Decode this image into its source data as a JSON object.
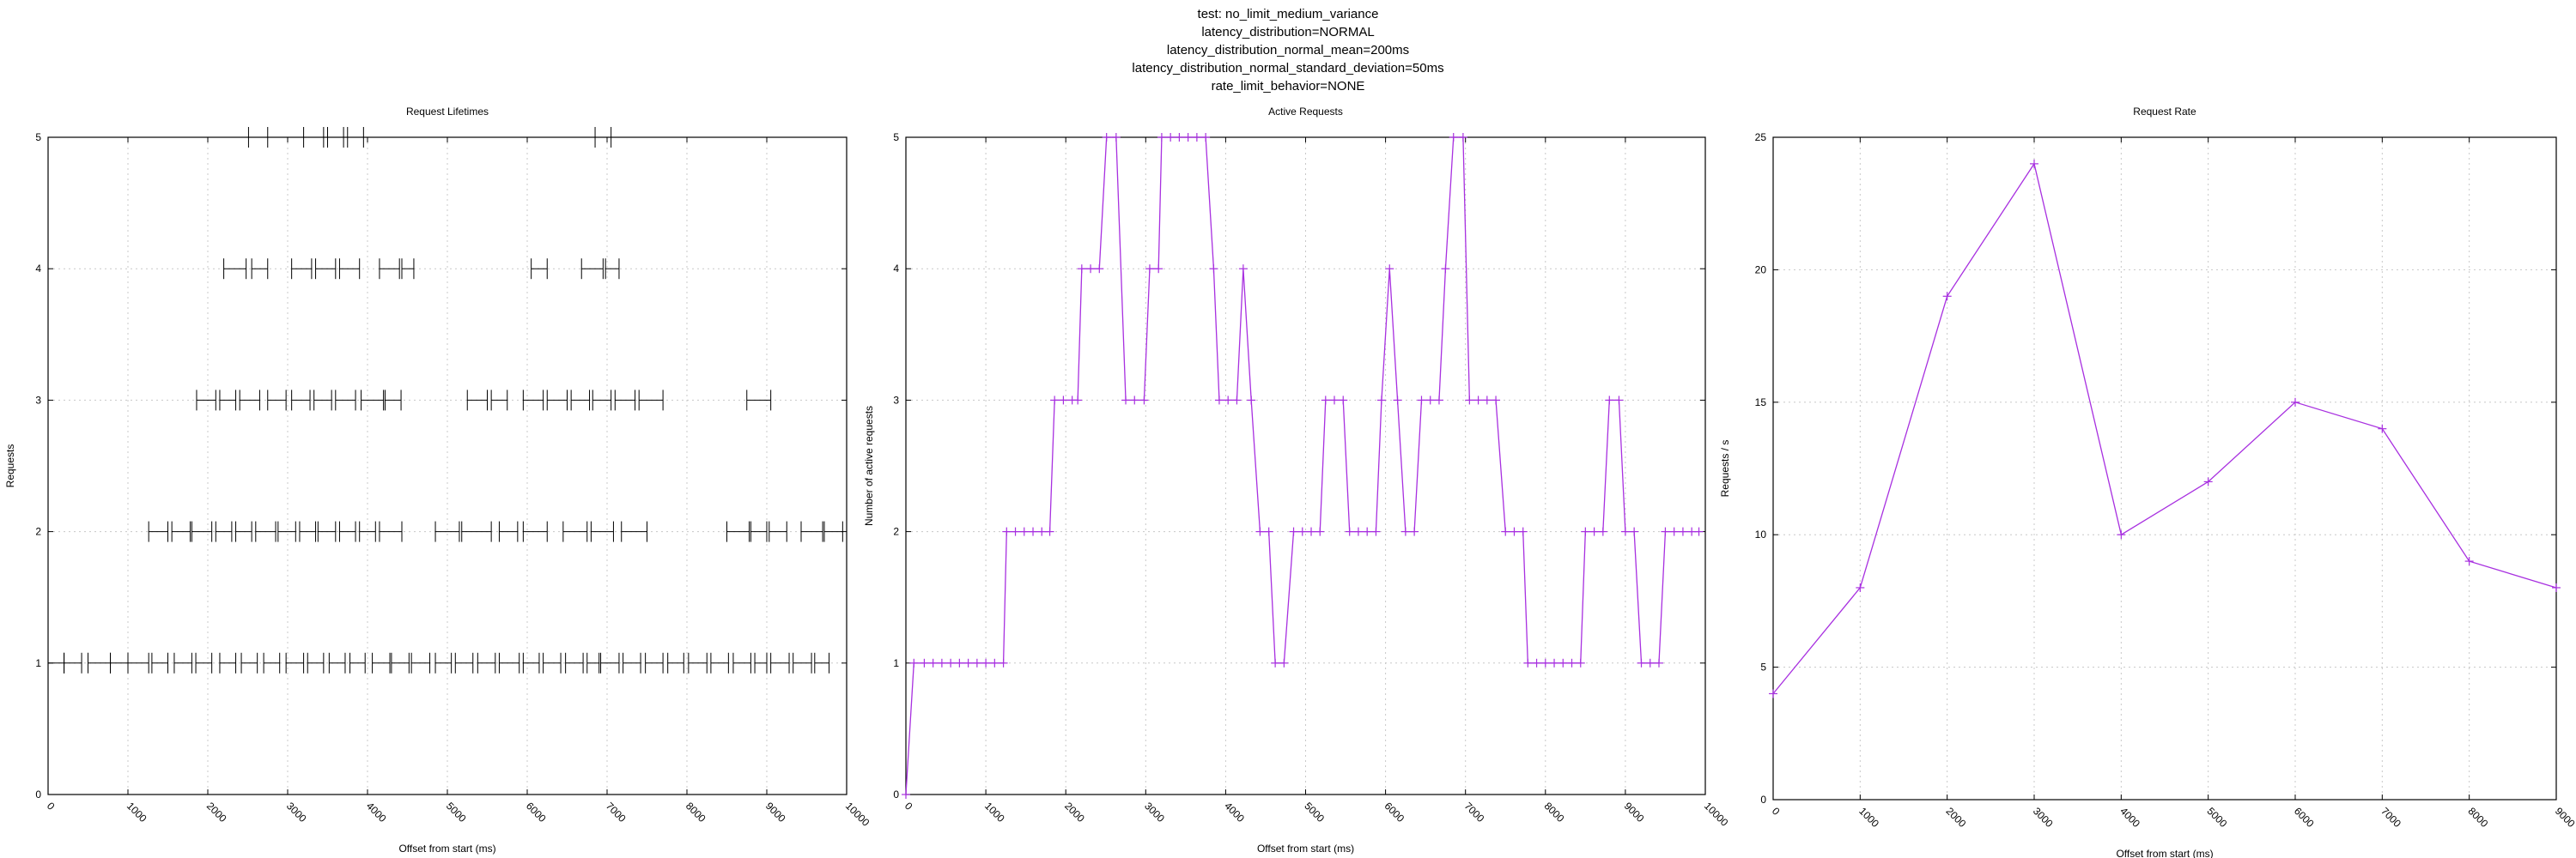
{
  "suptitle": [
    "test: no_limit_medium_variance",
    "latency_distribution=NORMAL",
    "latency_distribution_normal_mean=200ms",
    "latency_distribution_normal_standard_deviation=50ms",
    "rate_limit_behavior=NONE"
  ],
  "colors": {
    "line": "#a830e0",
    "lifetime": "#000000",
    "grid": "#c8c8c8"
  },
  "chart_data": [
    {
      "type": "errorbar",
      "title": "Request Lifetimes",
      "xlabel": "Offset from start (ms)",
      "ylabel": "Requests",
      "xlim": [
        0,
        10000
      ],
      "ylim": [
        0,
        5
      ],
      "xticks": [
        0,
        1000,
        2000,
        3000,
        4000,
        5000,
        6000,
        7000,
        8000,
        9000,
        10000
      ],
      "yticks": [
        0,
        1,
        2,
        3,
        4,
        5
      ],
      "grid": true,
      "intervals": [
        {
          "y": 1,
          "s": 0,
          "e": 200
        },
        {
          "y": 1,
          "s": 200,
          "e": 420
        },
        {
          "y": 1,
          "s": 500,
          "e": 780
        },
        {
          "y": 1,
          "s": 780,
          "e": 1000
        },
        {
          "y": 1,
          "s": 1000,
          "e": 1260
        },
        {
          "y": 1,
          "s": 1300,
          "e": 1500
        },
        {
          "y": 1,
          "s": 1580,
          "e": 1800
        },
        {
          "y": 1,
          "s": 1850,
          "e": 2050
        },
        {
          "y": 1,
          "s": 2150,
          "e": 2350
        },
        {
          "y": 1,
          "s": 2420,
          "e": 2620
        },
        {
          "y": 1,
          "s": 2700,
          "e": 2900
        },
        {
          "y": 1,
          "s": 2980,
          "e": 3200
        },
        {
          "y": 1,
          "s": 3250,
          "e": 3450
        },
        {
          "y": 1,
          "s": 3520,
          "e": 3720
        },
        {
          "y": 1,
          "s": 3780,
          "e": 3970
        },
        {
          "y": 1,
          "s": 4060,
          "e": 4280
        },
        {
          "y": 1,
          "s": 4300,
          "e": 4520
        },
        {
          "y": 1,
          "s": 4550,
          "e": 4780
        },
        {
          "y": 1,
          "s": 4850,
          "e": 5050
        },
        {
          "y": 1,
          "s": 5100,
          "e": 5320
        },
        {
          "y": 1,
          "s": 5380,
          "e": 5600
        },
        {
          "y": 1,
          "s": 5650,
          "e": 5900
        },
        {
          "y": 1,
          "s": 5950,
          "e": 6150
        },
        {
          "y": 1,
          "s": 6200,
          "e": 6420
        },
        {
          "y": 1,
          "s": 6480,
          "e": 6700
        },
        {
          "y": 1,
          "s": 6750,
          "e": 6900
        },
        {
          "y": 1,
          "s": 6920,
          "e": 7150
        },
        {
          "y": 1,
          "s": 7200,
          "e": 7420
        },
        {
          "y": 1,
          "s": 7480,
          "e": 7700
        },
        {
          "y": 1,
          "s": 7760,
          "e": 7960
        },
        {
          "y": 1,
          "s": 8020,
          "e": 8250
        },
        {
          "y": 1,
          "s": 8300,
          "e": 8520
        },
        {
          "y": 1,
          "s": 8580,
          "e": 8800
        },
        {
          "y": 1,
          "s": 8850,
          "e": 9000
        },
        {
          "y": 1,
          "s": 9050,
          "e": 9280
        },
        {
          "y": 1,
          "s": 9330,
          "e": 9560
        },
        {
          "y": 1,
          "s": 9600,
          "e": 9780
        },
        {
          "y": 2,
          "s": 1260,
          "e": 1500
        },
        {
          "y": 2,
          "s": 1550,
          "e": 1780
        },
        {
          "y": 2,
          "s": 1800,
          "e": 2050
        },
        {
          "y": 2,
          "s": 2100,
          "e": 2300
        },
        {
          "y": 2,
          "s": 2350,
          "e": 2550
        },
        {
          "y": 2,
          "s": 2600,
          "e": 2850
        },
        {
          "y": 2,
          "s": 2880,
          "e": 3100
        },
        {
          "y": 2,
          "s": 3150,
          "e": 3350
        },
        {
          "y": 2,
          "s": 3380,
          "e": 3600
        },
        {
          "y": 2,
          "s": 3650,
          "e": 3850
        },
        {
          "y": 2,
          "s": 3900,
          "e": 4100
        },
        {
          "y": 2,
          "s": 4150,
          "e": 4430
        },
        {
          "y": 2,
          "s": 4850,
          "e": 5150
        },
        {
          "y": 2,
          "s": 5180,
          "e": 5550
        },
        {
          "y": 2,
          "s": 5650,
          "e": 5880
        },
        {
          "y": 2,
          "s": 5950,
          "e": 6250
        },
        {
          "y": 2,
          "s": 6450,
          "e": 6750
        },
        {
          "y": 2,
          "s": 6800,
          "e": 7080
        },
        {
          "y": 2,
          "s": 7180,
          "e": 7500
        },
        {
          "y": 2,
          "s": 8500,
          "e": 8780
        },
        {
          "y": 2,
          "s": 8800,
          "e": 9000
        },
        {
          "y": 2,
          "s": 9030,
          "e": 9250
        },
        {
          "y": 2,
          "s": 9430,
          "e": 9700
        },
        {
          "y": 2,
          "s": 9720,
          "e": 9950
        },
        {
          "y": 3,
          "s": 1860,
          "e": 2100
        },
        {
          "y": 3,
          "s": 2150,
          "e": 2350
        },
        {
          "y": 3,
          "s": 2400,
          "e": 2650
        },
        {
          "y": 3,
          "s": 2750,
          "e": 2980
        },
        {
          "y": 3,
          "s": 3050,
          "e": 3280
        },
        {
          "y": 3,
          "s": 3330,
          "e": 3550
        },
        {
          "y": 3,
          "s": 3600,
          "e": 3850
        },
        {
          "y": 3,
          "s": 3920,
          "e": 4200
        },
        {
          "y": 3,
          "s": 4220,
          "e": 4420
        },
        {
          "y": 3,
          "s": 5250,
          "e": 5500
        },
        {
          "y": 3,
          "s": 5550,
          "e": 5750
        },
        {
          "y": 3,
          "s": 5950,
          "e": 6200
        },
        {
          "y": 3,
          "s": 6250,
          "e": 6500
        },
        {
          "y": 3,
          "s": 6550,
          "e": 6780
        },
        {
          "y": 3,
          "s": 6820,
          "e": 7050
        },
        {
          "y": 3,
          "s": 7100,
          "e": 7350
        },
        {
          "y": 3,
          "s": 7400,
          "e": 7700
        },
        {
          "y": 3,
          "s": 8750,
          "e": 9050
        },
        {
          "y": 4,
          "s": 2200,
          "e": 2480
        },
        {
          "y": 4,
          "s": 2550,
          "e": 2750
        },
        {
          "y": 4,
          "s": 3050,
          "e": 3300
        },
        {
          "y": 4,
          "s": 3350,
          "e": 3600
        },
        {
          "y": 4,
          "s": 3650,
          "e": 3900
        },
        {
          "y": 4,
          "s": 4150,
          "e": 4400
        },
        {
          "y": 4,
          "s": 4430,
          "e": 4580
        },
        {
          "y": 4,
          "s": 6050,
          "e": 6250
        },
        {
          "y": 4,
          "s": 6680,
          "e": 6950
        },
        {
          "y": 4,
          "s": 6980,
          "e": 7150
        },
        {
          "y": 5,
          "s": 2510,
          "e": 2750
        },
        {
          "y": 5,
          "s": 3200,
          "e": 3450
        },
        {
          "y": 5,
          "s": 3500,
          "e": 3700
        },
        {
          "y": 5,
          "s": 3750,
          "e": 3950
        },
        {
          "y": 5,
          "s": 6850,
          "e": 7050
        }
      ]
    },
    {
      "type": "line",
      "title": "Active Requests",
      "xlabel": "Offset from start (ms)",
      "ylabel": "Number of active requests",
      "xlim": [
        0,
        10000
      ],
      "ylim": [
        0,
        5
      ],
      "xticks": [
        0,
        1000,
        2000,
        3000,
        4000,
        5000,
        6000,
        7000,
        8000,
        9000,
        10000
      ],
      "yticks": [
        0,
        1,
        2,
        3,
        4,
        5
      ],
      "grid": true,
      "points": [
        [
          0,
          0
        ],
        [
          100,
          1
        ],
        [
          230,
          1
        ],
        [
          340,
          1
        ],
        [
          450,
          1
        ],
        [
          560,
          1
        ],
        [
          670,
          1
        ],
        [
          780,
          1
        ],
        [
          890,
          1
        ],
        [
          1000,
          1
        ],
        [
          1110,
          1
        ],
        [
          1220,
          1
        ],
        [
          1260,
          2
        ],
        [
          1370,
          2
        ],
        [
          1480,
          2
        ],
        [
          1590,
          2
        ],
        [
          1700,
          2
        ],
        [
          1800,
          2
        ],
        [
          1860,
          3
        ],
        [
          1970,
          3
        ],
        [
          2080,
          3
        ],
        [
          2150,
          3
        ],
        [
          2200,
          4
        ],
        [
          2310,
          4
        ],
        [
          2420,
          4
        ],
        [
          2510,
          5
        ],
        [
          2630,
          5
        ],
        [
          2750,
          3
        ],
        [
          2860,
          3
        ],
        [
          2980,
          3
        ],
        [
          3050,
          4
        ],
        [
          3160,
          4
        ],
        [
          3200,
          5
        ],
        [
          3310,
          5
        ],
        [
          3420,
          5
        ],
        [
          3530,
          5
        ],
        [
          3640,
          5
        ],
        [
          3750,
          5
        ],
        [
          3850,
          4
        ],
        [
          3920,
          3
        ],
        [
          4030,
          3
        ],
        [
          4140,
          3
        ],
        [
          4220,
          4
        ],
        [
          4320,
          3
        ],
        [
          4430,
          2
        ],
        [
          4540,
          2
        ],
        [
          4620,
          1
        ],
        [
          4730,
          1
        ],
        [
          4850,
          2
        ],
        [
          4960,
          2
        ],
        [
          5070,
          2
        ],
        [
          5180,
          2
        ],
        [
          5250,
          3
        ],
        [
          5360,
          3
        ],
        [
          5470,
          3
        ],
        [
          5550,
          2
        ],
        [
          5660,
          2
        ],
        [
          5770,
          2
        ],
        [
          5880,
          2
        ],
        [
          5950,
          3
        ],
        [
          6050,
          4
        ],
        [
          6150,
          3
        ],
        [
          6250,
          2
        ],
        [
          6360,
          2
        ],
        [
          6450,
          3
        ],
        [
          6560,
          3
        ],
        [
          6670,
          3
        ],
        [
          6750,
          4
        ],
        [
          6850,
          5
        ],
        [
          6970,
          5
        ],
        [
          7050,
          3
        ],
        [
          7160,
          3
        ],
        [
          7270,
          3
        ],
        [
          7380,
          3
        ],
        [
          7500,
          2
        ],
        [
          7610,
          2
        ],
        [
          7720,
          2
        ],
        [
          7780,
          1
        ],
        [
          7890,
          1
        ],
        [
          8000,
          1
        ],
        [
          8110,
          1
        ],
        [
          8220,
          1
        ],
        [
          8330,
          1
        ],
        [
          8440,
          1
        ],
        [
          8500,
          2
        ],
        [
          8610,
          2
        ],
        [
          8720,
          2
        ],
        [
          8800,
          3
        ],
        [
          8920,
          3
        ],
        [
          9000,
          2
        ],
        [
          9110,
          2
        ],
        [
          9200,
          1
        ],
        [
          9310,
          1
        ],
        [
          9420,
          1
        ],
        [
          9500,
          2
        ],
        [
          9610,
          2
        ],
        [
          9720,
          2
        ],
        [
          9830,
          2
        ],
        [
          9920,
          2
        ]
      ]
    },
    {
      "type": "line",
      "title": "Request Rate",
      "xlabel": "Offset from start (ms)",
      "ylabel": "Requests / s",
      "xlim": [
        0,
        9000
      ],
      "ylim": [
        0,
        25
      ],
      "xticks": [
        0,
        1000,
        2000,
        3000,
        4000,
        5000,
        6000,
        7000,
        8000,
        9000
      ],
      "yticks": [
        0,
        5,
        10,
        15,
        20,
        25
      ],
      "grid": true,
      "points": [
        [
          0,
          4
        ],
        [
          1000,
          8
        ],
        [
          2000,
          19
        ],
        [
          3000,
          24
        ],
        [
          4000,
          10
        ],
        [
          5000,
          12
        ],
        [
          6000,
          15
        ],
        [
          7000,
          14
        ],
        [
          8000,
          9
        ],
        [
          9000,
          8
        ]
      ]
    }
  ]
}
